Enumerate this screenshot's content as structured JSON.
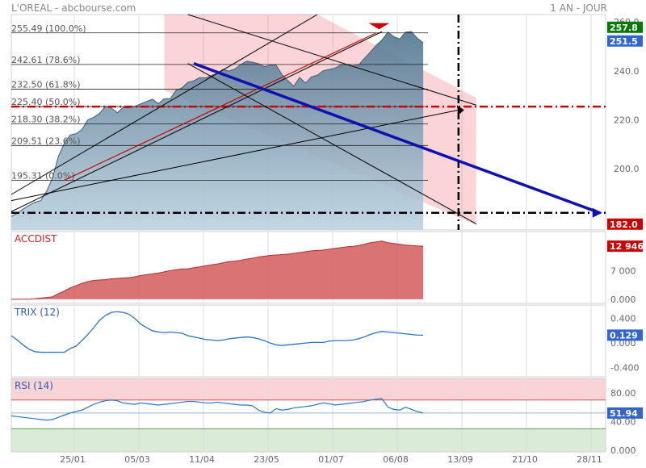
{
  "header": {
    "title": "L'OREAL - abcbourse.com",
    "period": "1 AN - JOUR"
  },
  "colors": {
    "up": "#007a00",
    "blue": "#3366cc",
    "red": "#cc0000",
    "price_area": "#7ba3c0",
    "accdist": "#d45a5a",
    "trix": "#2a73c8",
    "rsi": "#2a73c8"
  },
  "chart_data": [
    {
      "type": "area",
      "x_labels": [
        "25/01",
        "05/03",
        "11/04",
        "23/05",
        "01/07",
        "06/08",
        "13/09",
        "21/10",
        "28/11"
      ],
      "y_ticks": [
        200.0,
        220.0,
        240.0,
        260.0
      ],
      "ylim": [
        175,
        263
      ],
      "price": [
        180.5,
        181.8,
        183.5,
        185.0,
        186.3,
        187.0,
        190.8,
        196.2,
        205.0,
        210.3,
        213.8,
        214.3,
        216.0,
        220.0,
        221.0,
        222.6,
        225.5,
        224.8,
        222.9,
        225.0,
        224.9,
        225.5,
        226.5,
        227.5,
        228.4,
        226.6,
        228.6,
        228.6,
        232.0,
        233.0,
        235.3,
        235.9,
        237.2,
        237.1,
        238.1,
        239.0,
        240.6,
        239.9,
        240.8,
        242.6,
        243.9,
        243.5,
        242.9,
        241.7,
        242.3,
        242.3,
        238.5,
        236.0,
        233.7,
        237.3,
        235.0,
        237.5,
        238.2,
        240.0,
        240.6,
        241.1,
        242.4,
        242.6,
        242.0,
        242.3,
        245.1,
        247.6,
        250.4,
        252.6,
        255.8,
        254.0,
        253.0,
        255.8,
        256.0,
        253.3,
        251.5
      ],
      "fibonacci": [
        {
          "label": "255.49 (100.0%)",
          "value": 255.49
        },
        {
          "label": "242.61 (78.6%)",
          "value": 242.61
        },
        {
          "label": "232.50 (61.8%)",
          "value": 232.5
        },
        {
          "label": "225.40 (50.0%)",
          "value": 225.4
        },
        {
          "label": "218.30 (38.2%)",
          "value": 218.3
        },
        {
          "label": "209.51 (23.6%)",
          "value": 209.51
        },
        {
          "label": "195.31 (0.0%)",
          "value": 195.31
        }
      ],
      "value_tags": [
        {
          "text": "257.8",
          "value": 257.8,
          "color": "#007a00"
        },
        {
          "text": "251.5",
          "value": 251.5,
          "color": "#3366cc"
        },
        {
          "text": "182.0",
          "value": 182.0,
          "color": "#cc0000"
        }
      ]
    },
    {
      "type": "area",
      "name": "ACCDIST",
      "y_ticks": [
        "0.000",
        "7 000"
      ],
      "tick_values": [
        0,
        7000
      ],
      "ylim": [
        -1000,
        16500
      ],
      "values": [
        0,
        0,
        0,
        0,
        150,
        300,
        450,
        600,
        1400,
        2000,
        2800,
        3300,
        3900,
        4300,
        4600,
        4700,
        4800,
        5000,
        5100,
        5200,
        5300,
        5500,
        5800,
        6000,
        6200,
        6400,
        6700,
        7000,
        7200,
        7400,
        7400,
        7700,
        7900,
        8200,
        8400,
        8600,
        8900,
        9200,
        9300,
        9500,
        9800,
        10000,
        10300,
        10500,
        10700,
        10800,
        10900,
        11000,
        11200,
        11400,
        11600,
        11800,
        11900,
        12000,
        12200,
        12400,
        12600,
        12800,
        12900,
        13100,
        13400,
        13800,
        14000,
        14200,
        13800,
        13600,
        13400,
        13200,
        13100,
        13000,
        12946
      ],
      "value_tag": {
        "text": "12 946",
        "value": 12946,
        "color": "#cc0000"
      }
    },
    {
      "type": "line",
      "name": "TRIX (12)",
      "y_ticks": [
        "-0.400",
        "0.000",
        "0.400"
      ],
      "tick_values": [
        -0.4,
        0.0,
        0.4
      ],
      "ylim": [
        -0.55,
        0.62
      ],
      "values": [
        0.12,
        0.05,
        -0.03,
        -0.1,
        -0.14,
        -0.15,
        -0.15,
        -0.15,
        -0.15,
        -0.15,
        -0.09,
        -0.05,
        0.04,
        0.14,
        0.25,
        0.37,
        0.45,
        0.5,
        0.51,
        0.5,
        0.47,
        0.4,
        0.31,
        0.25,
        0.2,
        0.18,
        0.17,
        0.18,
        0.17,
        0.16,
        0.12,
        0.1,
        0.08,
        0.06,
        0.05,
        0.04,
        0.05,
        0.07,
        0.08,
        0.09,
        0.1,
        0.09,
        0.07,
        0.04,
        0.0,
        -0.03,
        -0.04,
        -0.03,
        -0.02,
        -0.01,
        0.0,
        0.01,
        0.01,
        0.01,
        0.03,
        0.04,
        0.04,
        0.04,
        0.05,
        0.07,
        0.1,
        0.14,
        0.17,
        0.19,
        0.18,
        0.17,
        0.16,
        0.15,
        0.14,
        0.13,
        0.129
      ],
      "value_tag": {
        "text": "0.129",
        "value": 0.129,
        "color": "#3366cc"
      }
    },
    {
      "type": "line",
      "name": "RSI (14)",
      "y_ticks": [
        "0.000",
        "40.00",
        "80.00"
      ],
      "tick_values": [
        0,
        40,
        80
      ],
      "ylim": [
        -2,
        100
      ],
      "zones": {
        "overbought": 70,
        "oversold": 30
      },
      "values": [
        48,
        47,
        46,
        45,
        44,
        43,
        42,
        43,
        46,
        49,
        52,
        54,
        56,
        60,
        64,
        67,
        69,
        70,
        69,
        66,
        65,
        64,
        66,
        65,
        64,
        63,
        64,
        65,
        66,
        67,
        68,
        68,
        67,
        66,
        66,
        67,
        66,
        65,
        64,
        63,
        63,
        62,
        56,
        53,
        52,
        58,
        56,
        57,
        59,
        60,
        61,
        62,
        64,
        66,
        65,
        63,
        64,
        65,
        66,
        67,
        68,
        70,
        71,
        72,
        60,
        57,
        56,
        60,
        57,
        54,
        51.94
      ],
      "value_tag": {
        "text": "51.94",
        "value": 51.94,
        "color": "#3366cc"
      }
    }
  ]
}
